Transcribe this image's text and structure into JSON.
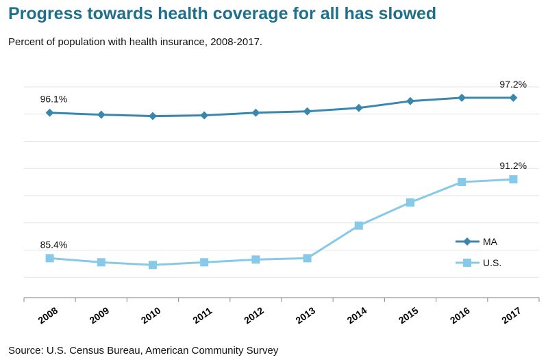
{
  "header": {
    "title": "Progress towards health coverage for all has slowed",
    "subtitle": "Percent of population with health insurance, 2008-2017."
  },
  "footer": {
    "source": "Source: U.S. Census Bureau, American Community Survey"
  },
  "colors": {
    "title": "#1f6f8b",
    "ma": "#3a87ad",
    "us": "#86c9e8",
    "grid": "#e3e3e3",
    "axis": "#999999"
  },
  "chart_data": {
    "type": "line",
    "title": "Progress towards health coverage for all has slowed",
    "subtitle": "Percent of population with health insurance, 2008-2017.",
    "xlabel": "",
    "ylabel": "",
    "grid": true,
    "legend": "right",
    "categories": [
      "2008",
      "2009",
      "2010",
      "2011",
      "2012",
      "2013",
      "2014",
      "2015",
      "2016",
      "2017"
    ],
    "ylim": [
      82.5,
      98.5
    ],
    "series": [
      {
        "name": "MA",
        "marker": "diamond",
        "values": [
          96.1,
          95.95,
          95.85,
          95.9,
          96.1,
          96.2,
          96.45,
          96.95,
          97.2,
          97.2
        ],
        "labels": {
          "first": "96.1%",
          "last": "97.2%"
        }
      },
      {
        "name": "U.S.",
        "marker": "square",
        "values": [
          85.4,
          85.1,
          84.9,
          85.1,
          85.3,
          85.4,
          87.8,
          89.5,
          91.0,
          91.2
        ],
        "labels": {
          "first": "85.4%",
          "last": "91.2%"
        }
      }
    ]
  }
}
